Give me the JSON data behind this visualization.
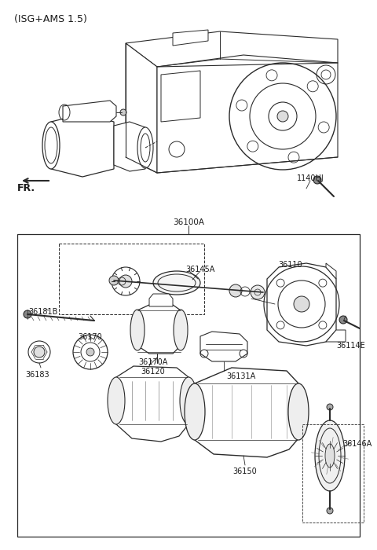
{
  "bg_color": "#ffffff",
  "line_color": "#2a2a2a",
  "text_color": "#1a1a1a",
  "title": "(ISG+AMS 1.5)",
  "label_36100A": "36100A",
  "label_1140HJ": "1140HJ",
  "label_36145A": "36145A",
  "label_36120": "36120",
  "label_36131A": "36131A",
  "label_36181B": "36181B",
  "label_36170": "36170",
  "label_36183": "36183",
  "label_36170A": "36170A",
  "label_36150": "36150",
  "label_36146A": "36146A",
  "label_36110": "36110",
  "label_36114E": "36114E",
  "label_FR": "FR.",
  "figsize": [
    4.8,
    7.0
  ],
  "dpi": 100
}
